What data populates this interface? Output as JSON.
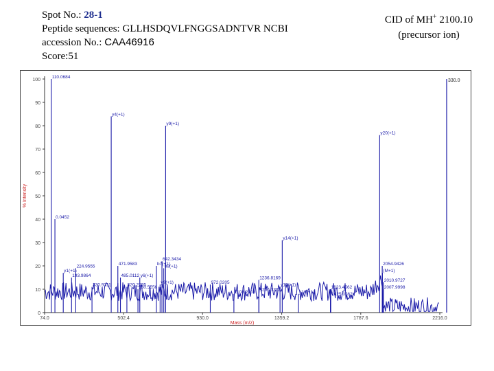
{
  "header": {
    "spot_label": "Spot No.: ",
    "spot_value": "28-1",
    "peptide_label": "Peptide sequences: GLLHSDQVLFNGGSADNTVR NCBI",
    "accession_label": "accession No.: ",
    "accession_value": "CAA46916",
    "score": "Score:51"
  },
  "cid": {
    "prefix": "CID of MH",
    "sup": "+",
    "value": " 2100.10",
    "sub": "(precursor ion)"
  },
  "colors": {
    "spectrum": "#1a1aa8",
    "peak": "#1a1aa8",
    "label": "#1a1aa8",
    "axis_text": "#444444",
    "axis_title": "#cc1f1f"
  },
  "chart_data": {
    "type": "line",
    "xlabel": "Mass (m/z)",
    "ylabel": "% Intensity",
    "xlim": [
      74.0,
      2216.0
    ],
    "ylim": [
      0,
      100
    ],
    "x_ticks": [
      "74.0",
      "502.4",
      "930.0",
      "1359.2",
      "1787.6",
      "2216.0"
    ],
    "y_ticks": [
      "0",
      "10",
      "20",
      "30",
      "40",
      "50",
      "60",
      "70",
      "80",
      "90",
      "100"
    ],
    "max_intensity_label": "330.0",
    "peaks": [
      {
        "mz": 110.07,
        "y": 100,
        "label": "110.0684"
      },
      {
        "mz": 130.0,
        "y": 40,
        "label": "0.0452"
      },
      {
        "mz": 175.1,
        "y": 17,
        "label": "y1(+1)"
      },
      {
        "mz": 243.0,
        "y": 19,
        "label": "224.9555"
      },
      {
        "mz": 220.0,
        "y": 15,
        "label": "193.9864"
      },
      {
        "mz": 330.9,
        "y": 11,
        "label": "330.9311"
      },
      {
        "mz": 435.0,
        "y": 84,
        "label": "y4(+1)"
      },
      {
        "mz": 471.0,
        "y": 20,
        "label": "471.9583"
      },
      {
        "mz": 485.0,
        "y": 15,
        "label": "485.0112"
      },
      {
        "mz": 520.0,
        "y": 11,
        "label": "520.2295"
      },
      {
        "mz": 590.0,
        "y": 15,
        "label": "y6(+1)"
      },
      {
        "mz": 580.0,
        "y": 10,
        "label": "550.5556"
      },
      {
        "mz": 680.0,
        "y": 20,
        "label": "b7(+1)"
      },
      {
        "mz": 730.0,
        "y": 80,
        "label": "y9(+1)"
      },
      {
        "mz": 710.0,
        "y": 22,
        "label": "642.3434"
      },
      {
        "mz": 720.0,
        "y": 19,
        "label": "b8(+1)"
      },
      {
        "mz": 700.0,
        "y": 12,
        "label": "y9(+1)"
      },
      {
        "mz": 972.0,
        "y": 12,
        "label": "972.0205"
      },
      {
        "mz": 1100.0,
        "y": 8,
        "label": "1108.2108"
      },
      {
        "mz": 1235.0,
        "y": 14,
        "label": "1236.8169"
      },
      {
        "mz": 1236.0,
        "y": 9,
        "label": "1266.7362"
      },
      {
        "mz": 1362.0,
        "y": 31,
        "label": "y14(+1)"
      },
      {
        "mz": 1350.0,
        "y": 11,
        "label": "y15(+1)"
      },
      {
        "mz": 1450.0,
        "y": 8,
        "label": "y16(+1)"
      },
      {
        "mz": 1623.0,
        "y": 10,
        "label": "1623.4562"
      },
      {
        "mz": 1625.0,
        "y": 7,
        "label": "1625.0562"
      },
      {
        "mz": 1890.0,
        "y": 76,
        "label": "y20(+1)"
      },
      {
        "mz": 1904.0,
        "y": 20,
        "label": "2054.9426"
      },
      {
        "mz": 1905.0,
        "y": 17,
        "label": "(M+1)"
      },
      {
        "mz": 1910.0,
        "y": 13,
        "label": "2010.9727"
      },
      {
        "mz": 1910.0,
        "y": 10,
        "label": "2007.9998"
      }
    ]
  }
}
